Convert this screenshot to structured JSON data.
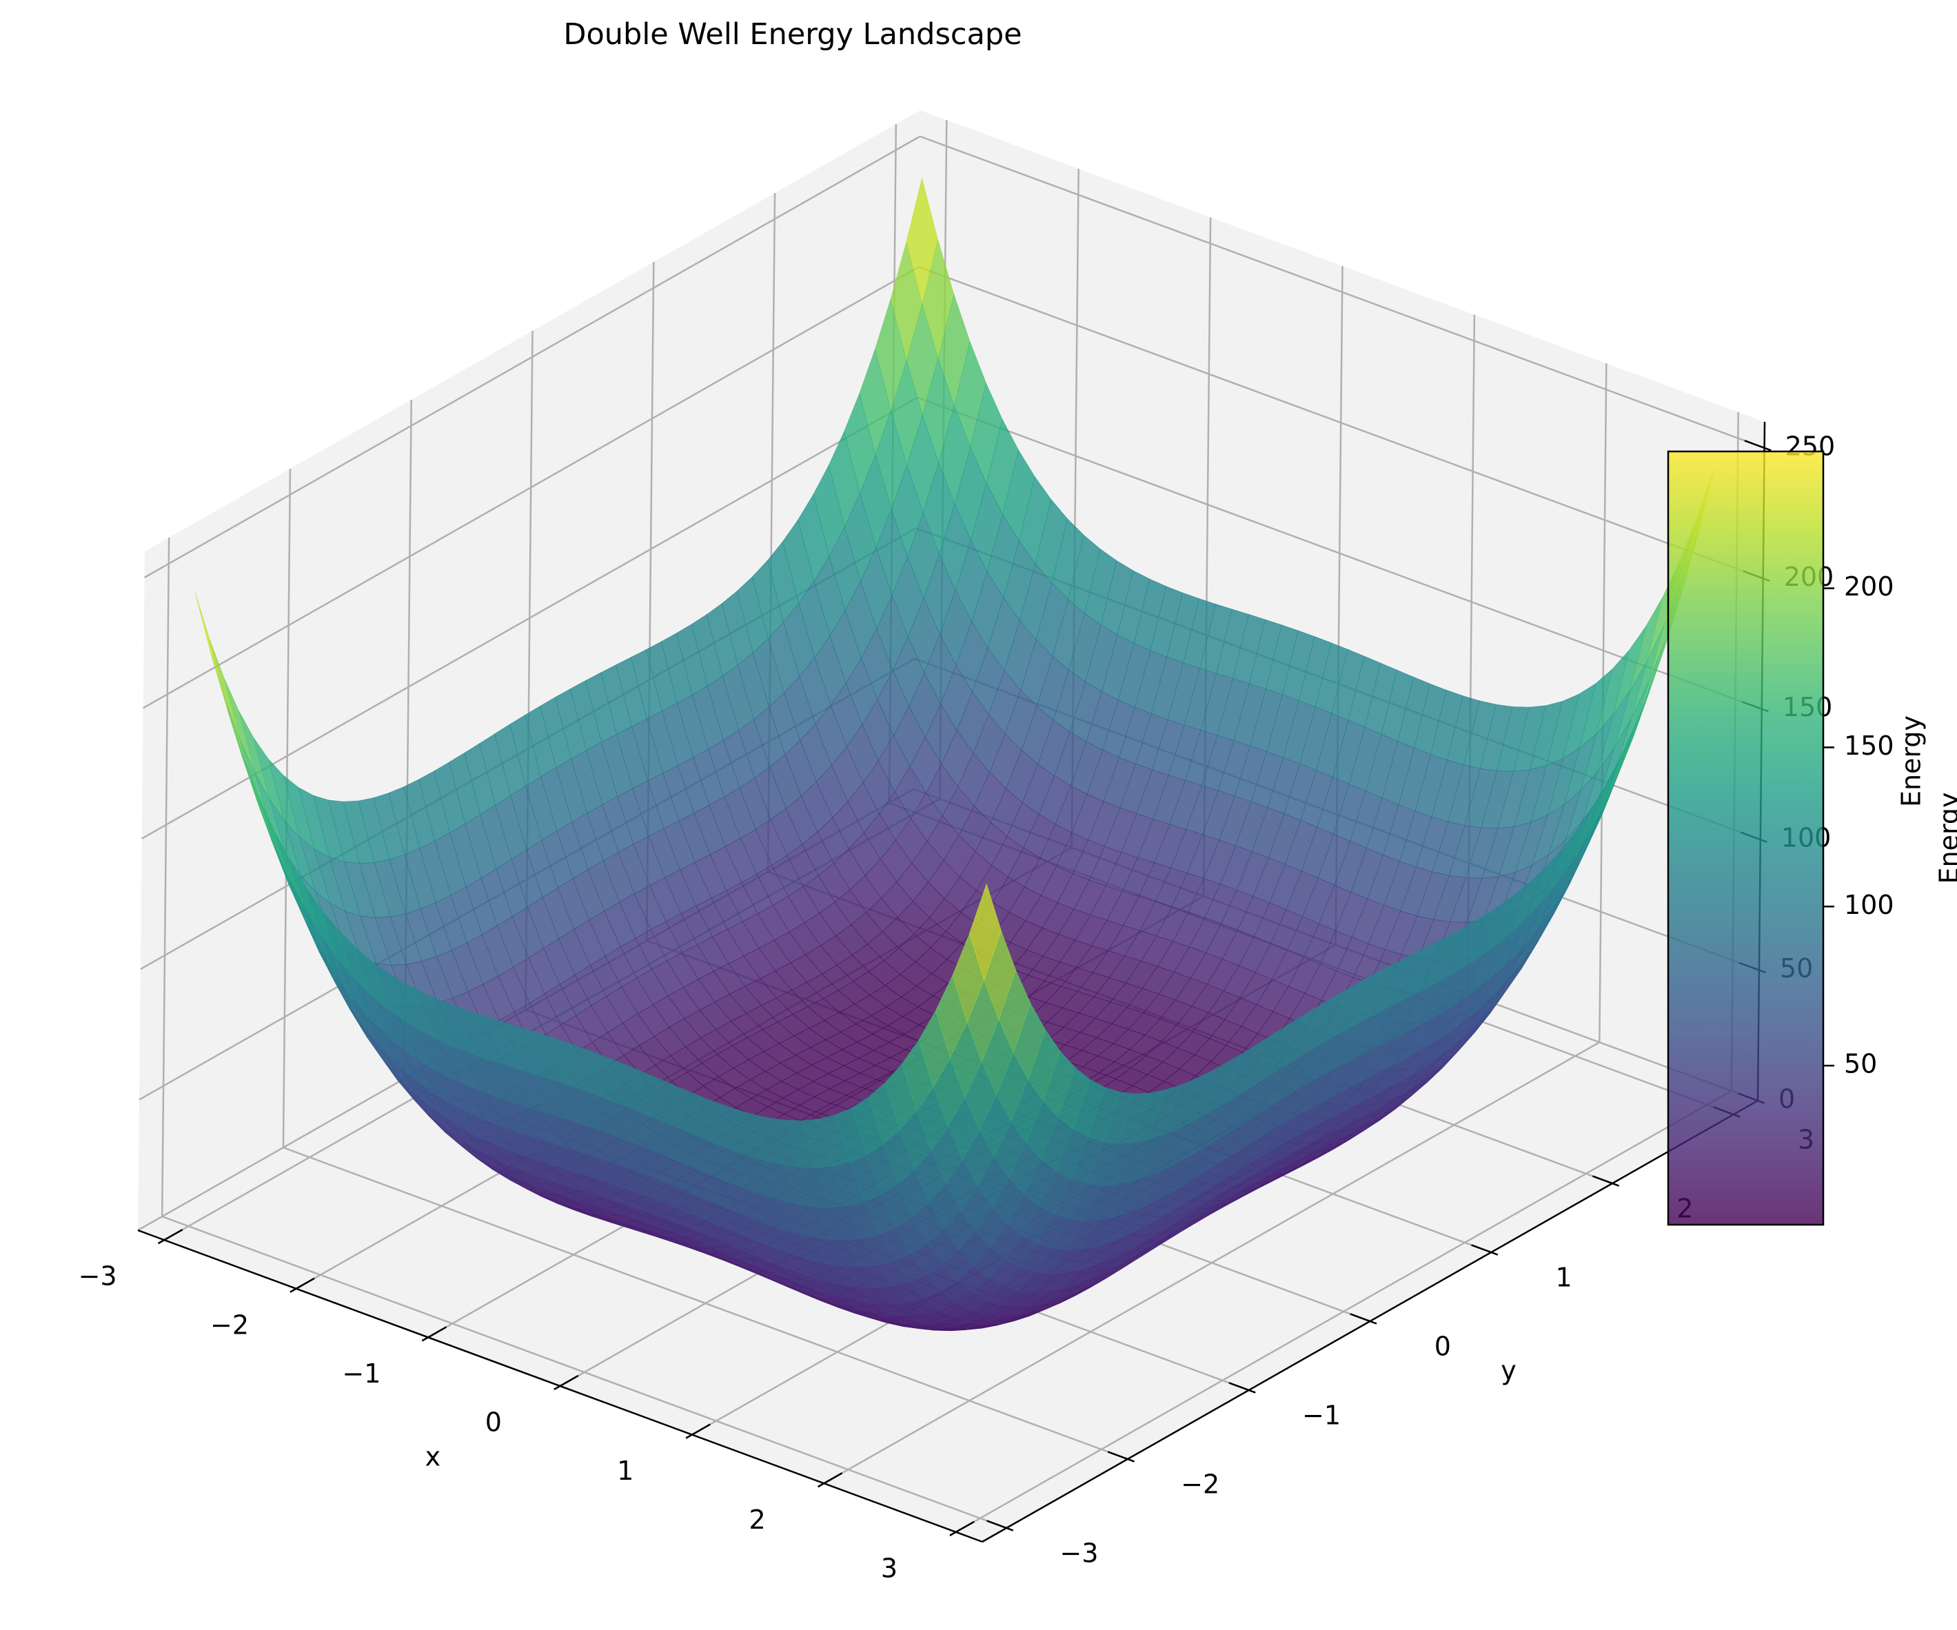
{
  "chart_data": {
    "type": "surface3d",
    "title": "Double Well Energy Landscape",
    "xlabel": "x",
    "ylabel": "y",
    "zlabel": "Energy",
    "colorbar_label": "Energy",
    "colormap": "viridis",
    "surface_alpha": 0.8,
    "xlim": [
      -3.2,
      3.2
    ],
    "ylim": [
      -3.2,
      3.2
    ],
    "zlim": [
      0,
      260
    ],
    "x_ticks": [
      "−3",
      "−2",
      "−1",
      "0",
      "1",
      "2",
      "3"
    ],
    "x_tick_values": [
      -3,
      -2,
      -1,
      0,
      1,
      2,
      3
    ],
    "y_ticks": [
      "−3",
      "−2",
      "−1",
      "0",
      "1",
      "2",
      "3"
    ],
    "y_tick_values": [
      -3,
      -2,
      -1,
      0,
      1,
      2,
      3
    ],
    "z_ticks": [
      "0",
      "50",
      "100",
      "150",
      "200",
      "250"
    ],
    "z_tick_values": [
      0,
      50,
      100,
      150,
      200,
      250
    ],
    "colorbar_ticks": [
      "50",
      "100",
      "150",
      "200"
    ],
    "colorbar_tick_values": [
      50,
      100,
      150,
      200
    ],
    "colorbar_range": [
      0.0,
      243
    ],
    "x_range": [
      -3,
      3
    ],
    "y_range": [
      -3,
      3
    ],
    "corner_energy": 243,
    "min_energy": 0.0,
    "grid": true,
    "pane_color": "#f2f2f2"
  }
}
